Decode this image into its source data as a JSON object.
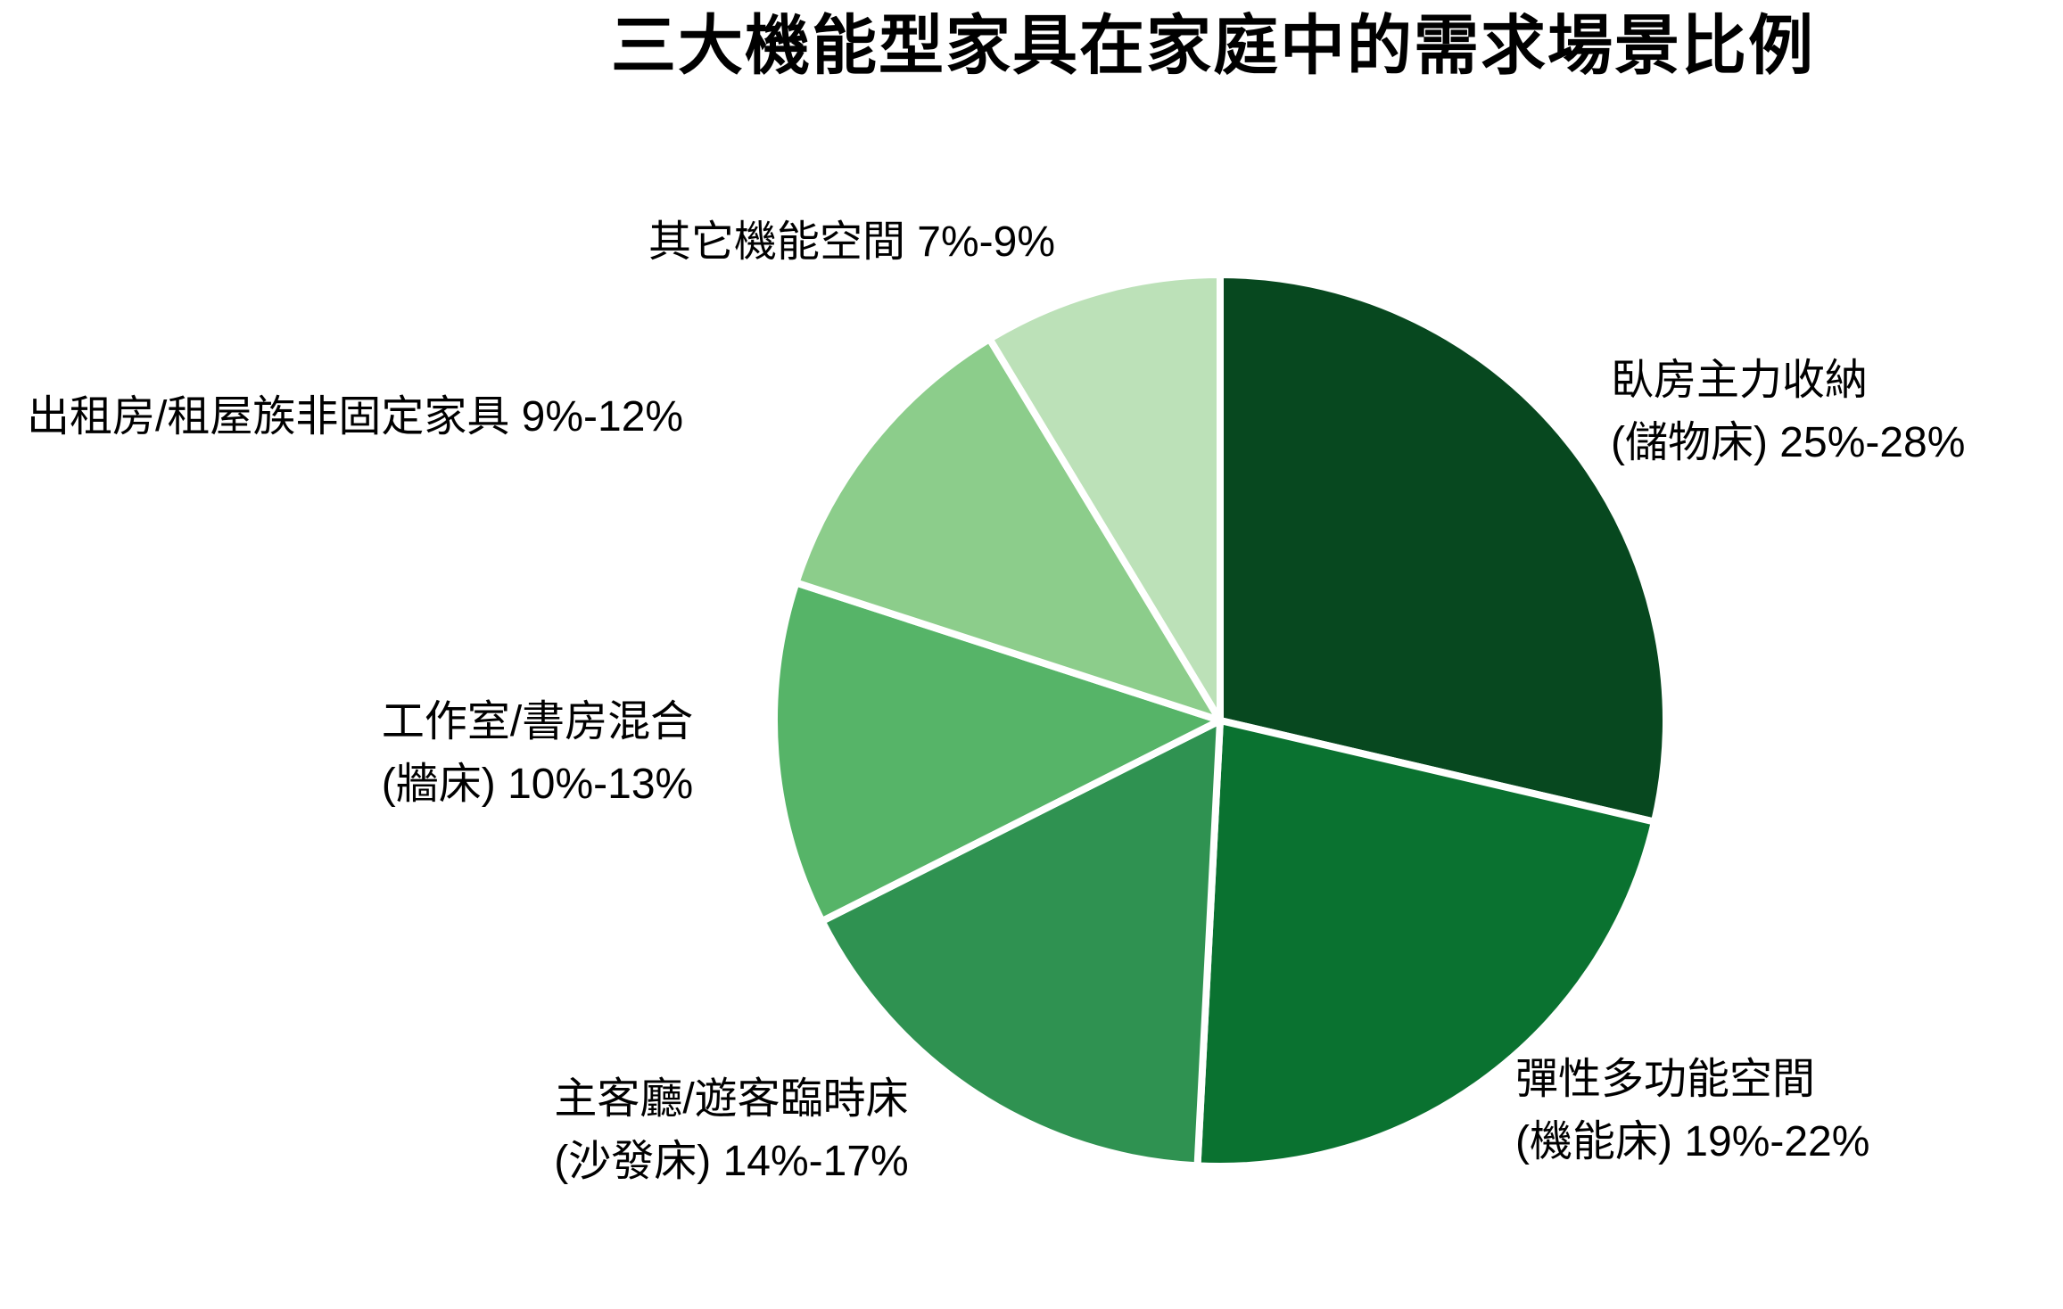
{
  "chart_data": {
    "type": "pie",
    "title": "三大機能型家具在家庭中的需求場景比例",
    "legend_position": "none",
    "label_style": "outside-text",
    "direction": "clockwise",
    "start_angle_deg": 0,
    "background_color": "#ffffff",
    "divider_color": "#ffffff",
    "label_color": "#000000",
    "value_basis": "midpoint of displayed percentage range, normalized to full circle",
    "slices": [
      {
        "id": "bedroom-storage-bed",
        "label_line1": "臥房主力收納",
        "label_line2": "(儲物床) 25%-28%",
        "range": "25%-28%",
        "range_low_pct": 25,
        "range_high_pct": 28,
        "value": 26.5,
        "color": "#07481f"
      },
      {
        "id": "flex-multifunction-bed",
        "label_line1": "彈性多功能空間",
        "label_line2": "(機能床) 19%-22%",
        "range": "19%-22%",
        "range_low_pct": 19,
        "range_high_pct": 22,
        "value": 20.5,
        "color": "#0a7230"
      },
      {
        "id": "livingroom-sofa-bed",
        "label_line1": "主客廳/遊客臨時床",
        "label_line2": "(沙發床) 14%-17%",
        "range": "14%-17%",
        "range_low_pct": 14,
        "range_high_pct": 17,
        "value": 15.5,
        "color": "#2f9251"
      },
      {
        "id": "study-wall-bed",
        "label_line1": "工作室/書房混合",
        "label_line2": "(牆床) 10%-13%",
        "range": "10%-13%",
        "range_low_pct": 10,
        "range_high_pct": 13,
        "value": 11.5,
        "color": "#56b468"
      },
      {
        "id": "rental-mobile-furniture",
        "label_line1": "出租房/租屋族非固定家具 9%-12%",
        "label_line2": "",
        "range": "9%-12%",
        "range_low_pct": 9,
        "range_high_pct": 12,
        "value": 10.5,
        "color": "#8ccd8b"
      },
      {
        "id": "other-functional-space",
        "label_line1": "其它機能空間 7%-9%",
        "label_line2": "",
        "range": "7%-9%",
        "range_low_pct": 7,
        "range_high_pct": 9,
        "value": 8,
        "color": "#bce1b8"
      }
    ]
  }
}
